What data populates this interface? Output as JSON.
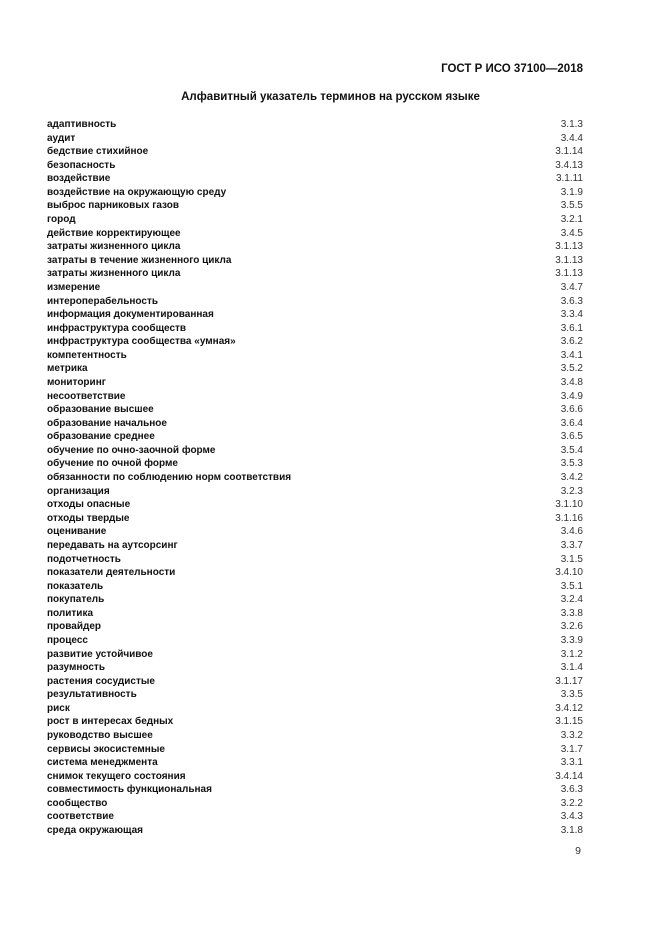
{
  "header": {
    "standard": "ГОСТ Р ИСО 37100—2018"
  },
  "title": "Алфавитный указатель терминов на русском языке",
  "entries": [
    {
      "term": "адаптивность",
      "ref": "3.1.3"
    },
    {
      "term": "аудит",
      "ref": "3.4.4"
    },
    {
      "term": "бедствие стихийное",
      "ref": "3.1.14"
    },
    {
      "term": "безопасность",
      "ref": "3.4.13"
    },
    {
      "term": "воздействие",
      "ref": "3.1.11"
    },
    {
      "term": "воздействие на окружающую среду",
      "ref": "3.1.9"
    },
    {
      "term": "выброс парниковых газов",
      "ref": "3.5.5"
    },
    {
      "term": "город",
      "ref": "3.2.1"
    },
    {
      "term": "действие корректирующее",
      "ref": "3.4.5"
    },
    {
      "term": "затраты жизненного цикла",
      "ref": "3.1.13"
    },
    {
      "term": "затраты в течение жизненного цикла",
      "ref": "3.1.13"
    },
    {
      "term": "затраты жизненного цикла",
      "ref": "3.1.13"
    },
    {
      "term": "измерение",
      "ref": "3.4.7"
    },
    {
      "term": "интероперабельность",
      "ref": "3.6.3"
    },
    {
      "term": "информация документированная",
      "ref": "3.3.4"
    },
    {
      "term": "инфраструктура сообществ",
      "ref": "3.6.1"
    },
    {
      "term": "инфраструктура сообщества «умная»",
      "ref": "3.6.2"
    },
    {
      "term": "компетентность",
      "ref": "3.4.1"
    },
    {
      "term": "метрика",
      "ref": "3.5.2"
    },
    {
      "term": "мониторинг",
      "ref": "3.4.8"
    },
    {
      "term": "несоответствие",
      "ref": "3.4.9"
    },
    {
      "term": "образование высшее",
      "ref": "3.6.6"
    },
    {
      "term": "образование начальное",
      "ref": "3.6.4"
    },
    {
      "term": "образование среднее",
      "ref": "3.6.5"
    },
    {
      "term": "обучение по очно-заочной форме",
      "ref": "3.5.4"
    },
    {
      "term": "обучение по очной форме",
      "ref": "3.5.3"
    },
    {
      "term": "обязанности по соблюдению норм соответствия",
      "ref": "3.4.2"
    },
    {
      "term": "организация",
      "ref": "3.2.3"
    },
    {
      "term": "отходы опасные",
      "ref": "3.1.10"
    },
    {
      "term": "отходы твердые",
      "ref": "3.1.16"
    },
    {
      "term": "оценивание",
      "ref": "3.4.6"
    },
    {
      "term": "передавать на аутсорсинг",
      "ref": "3.3.7"
    },
    {
      "term": "подотчетность",
      "ref": "3.1.5"
    },
    {
      "term": "показатели деятельности",
      "ref": "3.4.10"
    },
    {
      "term": "показатель",
      "ref": "3.5.1"
    },
    {
      "term": "покупатель",
      "ref": "3.2.4"
    },
    {
      "term": "политика",
      "ref": "3.3.8"
    },
    {
      "term": "провайдер",
      "ref": "3.2.6"
    },
    {
      "term": "процесс",
      "ref": "3.3.9"
    },
    {
      "term": "развитие устойчивое",
      "ref": "3.1.2"
    },
    {
      "term": "разумность",
      "ref": "3.1.4"
    },
    {
      "term": "растения сосудистые",
      "ref": "3.1.17"
    },
    {
      "term": "результативность",
      "ref": "3.3.5"
    },
    {
      "term": "риск",
      "ref": "3.4.12"
    },
    {
      "term": "рост в интересах бедных",
      "ref": "3.1.15"
    },
    {
      "term": "руководство высшее",
      "ref": "3.3.2"
    },
    {
      "term": "сервисы экосистемные",
      "ref": "3.1.7"
    },
    {
      "term": "система менеджмента",
      "ref": "3.3.1"
    },
    {
      "term": "снимок текущего состояния",
      "ref": "3.4.14"
    },
    {
      "term": "совместимость функциональная",
      "ref": "3.6.3"
    },
    {
      "term": "сообщество",
      "ref": "3.2.2"
    },
    {
      "term": "соответствие",
      "ref": "3.4.3"
    },
    {
      "term": "среда окружающая",
      "ref": "3.1.8"
    }
  ],
  "page_number": "9"
}
